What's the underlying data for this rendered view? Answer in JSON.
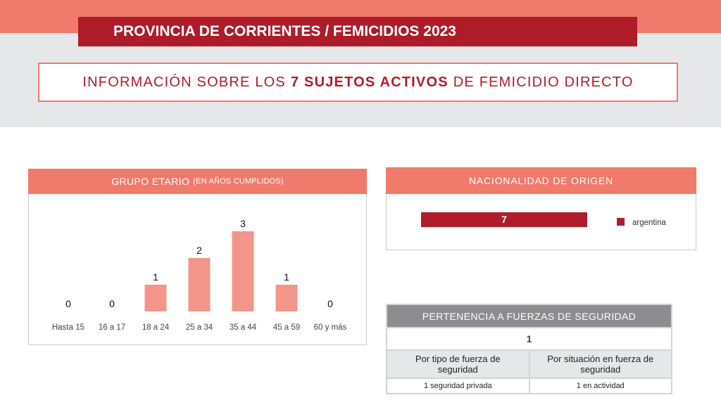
{
  "header": {
    "title": "PROVINCIA DE CORRIENTES / FEMICIDIOS 2023",
    "subtitle_pre": "INFORMACIÓN SOBRE LOS",
    "subtitle_bold": "7 SUJETOS ACTIVOS",
    "subtitle_post": "DE FEMICIDIO DIRECTO"
  },
  "colors": {
    "accent_salmon": "#f07a6c",
    "brand_red": "#ae1c2a",
    "bar_pink": "#f4958a",
    "band_gray": "#e6e7e9",
    "table_head_gray": "#8d8d8f"
  },
  "age_panel": {
    "title": "GRUPO ETARIO",
    "title_small": "(EN AÑOS CUMPLIDOS)"
  },
  "nationality_panel": {
    "title": "NACIONALIDAD DE ORIGEN"
  },
  "chart_data": [
    {
      "type": "bar",
      "title": "GRUPO ETARIO (EN AÑOS CUMPLIDOS)",
      "categories": [
        "Hasta 15",
        "16 a 17",
        "18 a 24",
        "25 a 34",
        "35 a 44",
        "45 a 59",
        "60 y más"
      ],
      "values": [
        0,
        0,
        1,
        2,
        3,
        1,
        0
      ],
      "ylim": [
        0,
        3
      ],
      "grid": false,
      "data_labels": true,
      "color": "#f4958a"
    },
    {
      "type": "bar",
      "orientation": "horizontal",
      "title": "NACIONALIDAD DE ORIGEN",
      "series": [
        {
          "name": "argentina",
          "values": [
            7
          ]
        }
      ],
      "ylim": [
        0,
        7
      ],
      "legend": "right",
      "color": "#ae1c2a"
    }
  ],
  "security_table": {
    "title": "PERTENENCIA A FUERZAS DE SEGURIDAD",
    "count": "1",
    "columns": [
      "Por tipo de fuerza de seguridad",
      "Por situación en fuerza de seguridad"
    ],
    "values": [
      "1 seguridad privada",
      "1 en actividad"
    ]
  }
}
